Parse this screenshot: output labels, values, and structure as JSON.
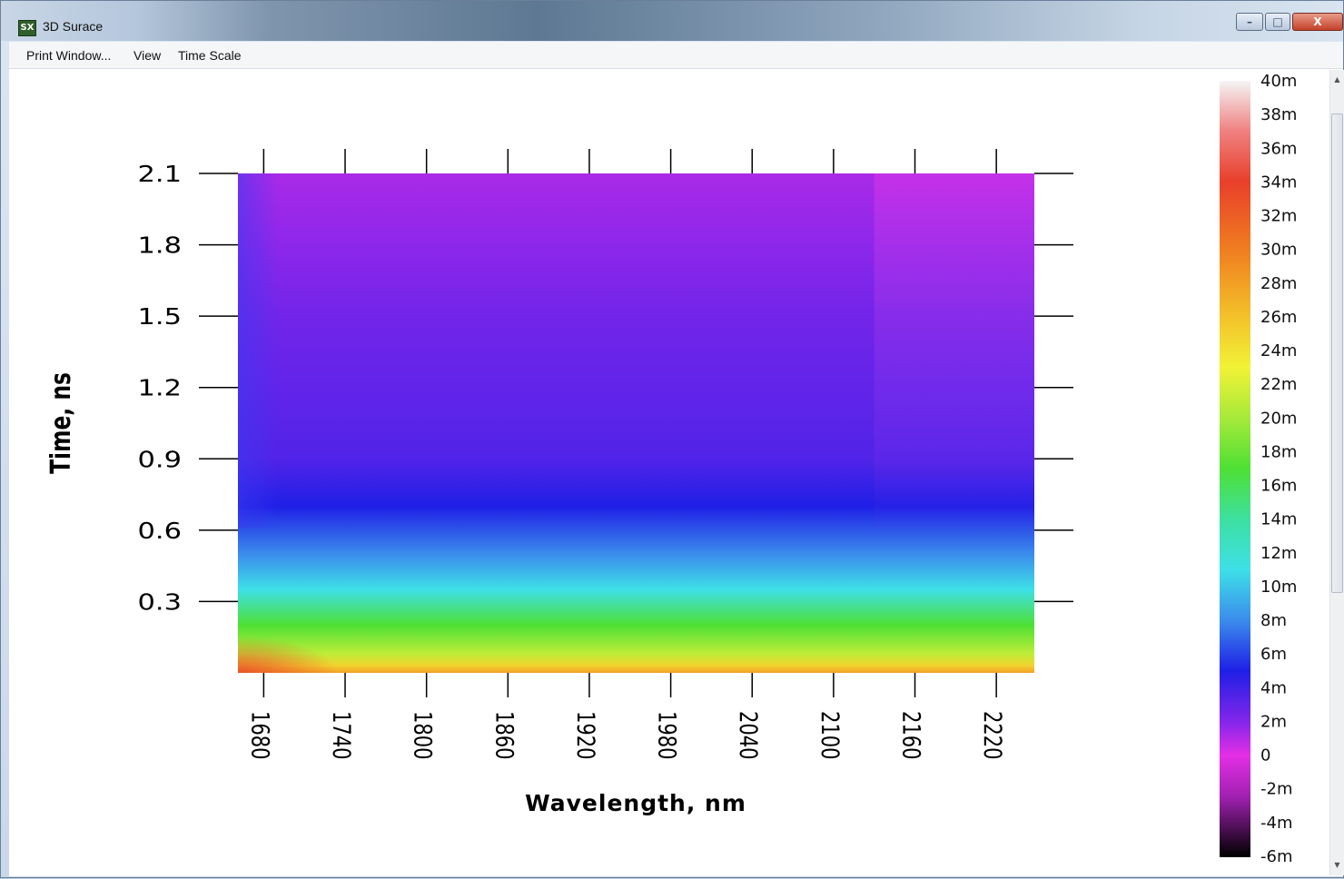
{
  "window": {
    "title": "3D Surace",
    "icon_label": "SX",
    "controls": {
      "minimize": "–",
      "maximize": "□",
      "close": "X"
    }
  },
  "menu": {
    "items": [
      "Print Window...",
      "View",
      "Time Scale"
    ]
  },
  "chart_data": {
    "type": "heatmap",
    "xlabel": "Wavelength, nm",
    "ylabel": "Time, ns",
    "x_ticks": [
      1680,
      1740,
      1800,
      1860,
      1920,
      1980,
      2040,
      2100,
      2160,
      2220
    ],
    "y_ticks": [
      0.3,
      0.6,
      0.9,
      1.2,
      1.5,
      1.8,
      2.1
    ],
    "xlim": [
      1661,
      2248
    ],
    "ylim": [
      0,
      2.1
    ],
    "colorbar": {
      "labels": [
        "40m",
        "38m",
        "36m",
        "34m",
        "32m",
        "30m",
        "28m",
        "26m",
        "24m",
        "22m",
        "20m",
        "18m",
        "16m",
        "14m",
        "12m",
        "10m",
        "8m",
        "6m",
        "4m",
        "2m",
        "0",
        "-2m",
        "-4m",
        "-6m"
      ],
      "range": [
        -6,
        40
      ],
      "stops": [
        {
          "value": 40,
          "color": "#f5f5f5"
        },
        {
          "value": 37,
          "color": "#f08080"
        },
        {
          "value": 34,
          "color": "#e8402a"
        },
        {
          "value": 30,
          "color": "#f07d20"
        },
        {
          "value": 26,
          "color": "#f3c22a"
        },
        {
          "value": 23,
          "color": "#f2f236"
        },
        {
          "value": 20,
          "color": "#a6ea3a"
        },
        {
          "value": 17,
          "color": "#4ee034"
        },
        {
          "value": 14,
          "color": "#3de0a0"
        },
        {
          "value": 11,
          "color": "#3ee0e8"
        },
        {
          "value": 8,
          "color": "#3b8cec"
        },
        {
          "value": 5,
          "color": "#1f1fe6"
        },
        {
          "value": 2,
          "color": "#8326ea"
        },
        {
          "value": 0,
          "color": "#e42fe6"
        },
        {
          "value": -2.5,
          "color": "#a020b0"
        },
        {
          "value": -6,
          "color": "#000000"
        }
      ]
    },
    "time_profile": [
      {
        "t": 0.0,
        "value": 28
      },
      {
        "t": 0.03,
        "value": 25
      },
      {
        "t": 0.08,
        "value": 21
      },
      {
        "t": 0.2,
        "value": 17
      },
      {
        "t": 0.35,
        "value": 11
      },
      {
        "t": 0.5,
        "value": 8
      },
      {
        "t": 0.7,
        "value": 5
      },
      {
        "t": 0.9,
        "value": 3.5
      },
      {
        "t": 1.2,
        "value": 3
      },
      {
        "t": 1.5,
        "value": 2.5
      },
      {
        "t": 1.8,
        "value": 1.8
      },
      {
        "t": 2.1,
        "value": 1.2
      }
    ]
  }
}
